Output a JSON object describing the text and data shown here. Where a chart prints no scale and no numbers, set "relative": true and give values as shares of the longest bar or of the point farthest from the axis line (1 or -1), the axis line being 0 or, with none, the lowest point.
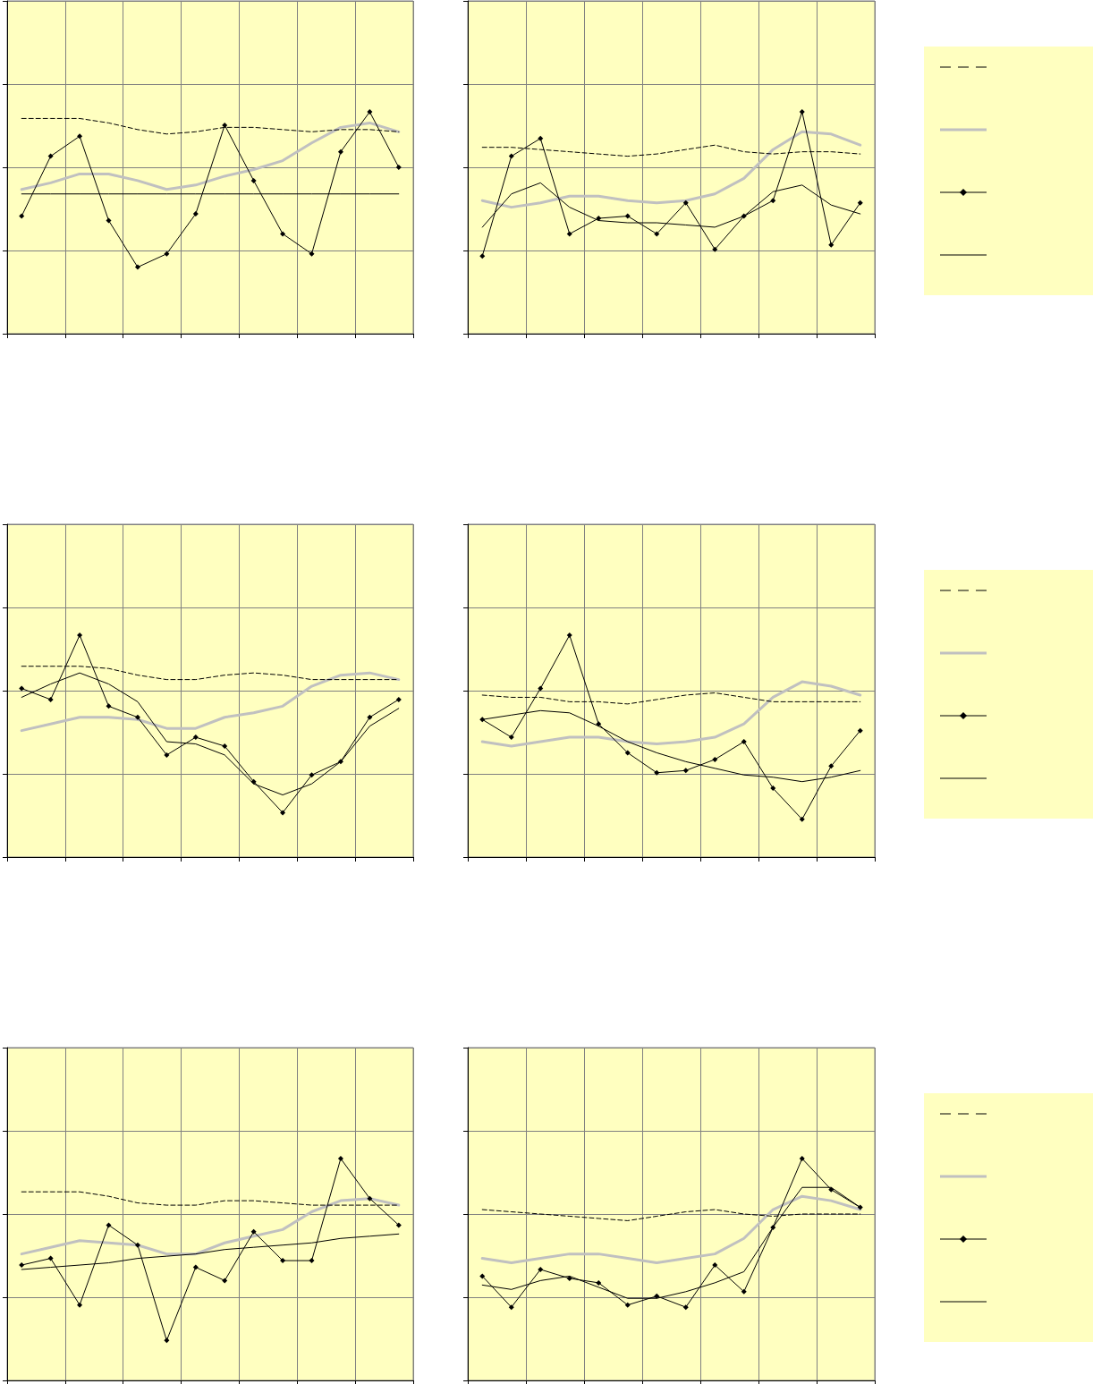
{
  "chart_data": [
    {
      "type": "line",
      "relative": true,
      "grid": true,
      "categories": [
        null,
        null,
        null,
        null,
        null,
        null,
        null,
        null,
        null,
        null,
        null,
        null,
        null,
        null
      ],
      "series": [
        {
          "color": "#000000",
          "line_style": "dashed",
          "marker": "none",
          "values": [
            0.97,
            0.97,
            0.97,
            0.95,
            0.92,
            0.9,
            0.91,
            0.93,
            0.93,
            0.92,
            0.91,
            0.92,
            0.92,
            0.91
          ]
        },
        {
          "color": "#c0c0c0",
          "line_style": "solid",
          "marker": "none",
          "values": [
            0.65,
            0.68,
            0.72,
            0.72,
            0.69,
            0.65,
            0.67,
            0.71,
            0.74,
            0.78,
            0.86,
            0.93,
            0.95,
            0.91
          ]
        },
        {
          "color": "#000000",
          "line_style": "solid",
          "marker": "diamond",
          "values": [
            0.53,
            0.8,
            0.89,
            0.51,
            0.3,
            0.36,
            0.54,
            0.94,
            0.69,
            0.45,
            0.36,
            0.82,
            1,
            0.75
          ]
        },
        {
          "color": "#000000",
          "line_style": "solid",
          "marker": "none",
          "values": [
            0.63,
            0.63,
            0.63,
            0.63,
            0.63,
            0.63,
            0.63,
            0.63,
            0.63,
            0.63,
            0.63,
            0.63,
            0.63,
            0.63
          ]
        }
      ]
    },
    {
      "type": "line",
      "relative": true,
      "grid": true,
      "categories": [
        null,
        null,
        null,
        null,
        null,
        null,
        null,
        null,
        null,
        null,
        null,
        null,
        null,
        null
      ],
      "series": [
        {
          "color": "#000000",
          "line_style": "dashed",
          "marker": "none",
          "values": [
            0.84,
            0.84,
            0.83,
            0.82,
            0.81,
            0.8,
            0.81,
            0.83,
            0.85,
            0.82,
            0.81,
            0.82,
            0.82,
            0.81
          ]
        },
        {
          "color": "#c0c0c0",
          "line_style": "solid",
          "marker": "none",
          "values": [
            0.6,
            0.57,
            0.59,
            0.62,
            0.62,
            0.6,
            0.59,
            0.6,
            0.63,
            0.7,
            0.83,
            0.91,
            0.9,
            0.85
          ]
        },
        {
          "color": "#000000",
          "line_style": "solid",
          "marker": "diamond",
          "values": [
            0.35,
            0.8,
            0.88,
            0.45,
            0.52,
            0.53,
            0.45,
            0.59,
            0.38,
            0.53,
            0.6,
            1,
            0.4,
            0.59
          ]
        },
        {
          "color": "#000000",
          "line_style": "solid",
          "marker": "none",
          "values": [
            0.48,
            0.63,
            0.68,
            0.57,
            0.51,
            0.5,
            0.5,
            0.49,
            0.48,
            0.53,
            0.64,
            0.67,
            0.58,
            0.54
          ]
        }
      ]
    },
    {
      "type": "line",
      "relative": true,
      "grid": true,
      "categories": [
        null,
        null,
        null,
        null,
        null,
        null,
        null,
        null,
        null,
        null,
        null,
        null,
        null,
        null
      ],
      "series": [
        {
          "color": "#000000",
          "line_style": "dashed",
          "marker": "none",
          "values": [
            0.86,
            0.86,
            0.86,
            0.85,
            0.82,
            0.8,
            0.8,
            0.82,
            0.83,
            0.82,
            0.8,
            0.8,
            0.8,
            0.8
          ]
        },
        {
          "color": "#c0c0c0",
          "line_style": "solid",
          "marker": "none",
          "values": [
            0.57,
            0.6,
            0.63,
            0.63,
            0.62,
            0.58,
            0.58,
            0.63,
            0.65,
            0.68,
            0.77,
            0.82,
            0.83,
            0.8
          ]
        },
        {
          "color": "#000000",
          "line_style": "solid",
          "marker": "diamond",
          "values": [
            0.76,
            0.71,
            1,
            0.68,
            0.63,
            0.46,
            0.54,
            0.5,
            0.34,
            0.2,
            0.37,
            0.43,
            0.63,
            0.71
          ]
        },
        {
          "color": "#000000",
          "line_style": "solid",
          "marker": "none",
          "values": [
            0.72,
            0.78,
            0.83,
            0.78,
            0.7,
            0.52,
            0.51,
            0.46,
            0.33,
            0.28,
            0.33,
            0.43,
            0.59,
            0.67
          ]
        }
      ]
    },
    {
      "type": "line",
      "relative": true,
      "grid": true,
      "categories": [
        null,
        null,
        null,
        null,
        null,
        null,
        null,
        null,
        null,
        null,
        null,
        null,
        null,
        null
      ],
      "series": [
        {
          "color": "#000000",
          "line_style": "dashed",
          "marker": "none",
          "values": [
            0.73,
            0.72,
            0.72,
            0.7,
            0.7,
            0.69,
            0.71,
            0.73,
            0.74,
            0.72,
            0.7,
            0.7,
            0.7,
            0.7
          ]
        },
        {
          "color": "#c0c0c0",
          "line_style": "solid",
          "marker": "none",
          "values": [
            0.52,
            0.5,
            0.52,
            0.54,
            0.54,
            0.52,
            0.51,
            0.52,
            0.54,
            0.6,
            0.72,
            0.79,
            0.77,
            0.73
          ]
        },
        {
          "color": "#000000",
          "line_style": "solid",
          "marker": "diamond",
          "values": [
            0.62,
            0.54,
            0.76,
            1,
            0.6,
            0.47,
            0.38,
            0.39,
            0.44,
            0.52,
            0.31,
            0.17,
            0.41,
            0.57
          ]
        },
        {
          "color": "#000000",
          "line_style": "solid",
          "marker": "none",
          "values": [
            0.62,
            0.64,
            0.66,
            0.65,
            0.59,
            0.52,
            0.47,
            0.43,
            0.4,
            0.37,
            0.36,
            0.34,
            0.36,
            0.39
          ]
        }
      ]
    },
    {
      "type": "line",
      "relative": true,
      "grid": true,
      "categories": [
        null,
        null,
        null,
        null,
        null,
        null,
        null,
        null,
        null,
        null,
        null,
        null,
        null,
        null
      ],
      "series": [
        {
          "color": "#000000",
          "line_style": "dashed",
          "marker": "none",
          "values": [
            0.85,
            0.85,
            0.85,
            0.83,
            0.8,
            0.79,
            0.79,
            0.81,
            0.81,
            0.8,
            0.79,
            0.79,
            0.79,
            0.79
          ]
        },
        {
          "color": "#c0c0c0",
          "line_style": "solid",
          "marker": "none",
          "values": [
            0.57,
            0.6,
            0.63,
            0.62,
            0.61,
            0.57,
            0.57,
            0.62,
            0.65,
            0.68,
            0.76,
            0.81,
            0.82,
            0.79
          ]
        },
        {
          "color": "#000000",
          "line_style": "solid",
          "marker": "diamond",
          "values": [
            0.52,
            0.55,
            0.34,
            0.7,
            0.61,
            0.18,
            0.51,
            0.45,
            0.67,
            0.54,
            0.54,
            1,
            0.82,
            0.7
          ]
        },
        {
          "color": "#000000",
          "line_style": "solid",
          "marker": "none",
          "values": [
            0.5,
            0.51,
            0.52,
            0.53,
            0.55,
            0.56,
            0.57,
            0.59,
            0.6,
            0.61,
            0.62,
            0.64,
            0.65,
            0.66
          ]
        }
      ]
    },
    {
      "type": "line",
      "relative": true,
      "grid": true,
      "categories": [
        null,
        null,
        null,
        null,
        null,
        null,
        null,
        null,
        null,
        null,
        null,
        null,
        null,
        null
      ],
      "series": [
        {
          "color": "#000000",
          "line_style": "dashed",
          "marker": "none",
          "values": [
            0.77,
            0.76,
            0.75,
            0.74,
            0.73,
            0.72,
            0.74,
            0.76,
            0.77,
            0.75,
            0.74,
            0.75,
            0.75,
            0.75
          ]
        },
        {
          "color": "#c0c0c0",
          "line_style": "solid",
          "marker": "none",
          "values": [
            0.55,
            0.53,
            0.55,
            0.57,
            0.57,
            0.55,
            0.53,
            0.55,
            0.57,
            0.64,
            0.77,
            0.83,
            0.81,
            0.77
          ]
        },
        {
          "color": "#000000",
          "line_style": "solid",
          "marker": "diamond",
          "values": [
            0.47,
            0.33,
            0.5,
            0.46,
            0.44,
            0.34,
            0.38,
            0.33,
            0.52,
            0.4,
            0.69,
            1,
            0.86,
            0.78
          ]
        },
        {
          "color": "#000000",
          "line_style": "solid",
          "marker": "none",
          "values": [
            0.43,
            0.41,
            0.45,
            0.47,
            0.42,
            0.37,
            0.37,
            0.4,
            0.44,
            0.49,
            0.69,
            0.87,
            0.87,
            0.78
          ]
        }
      ]
    }
  ]
}
